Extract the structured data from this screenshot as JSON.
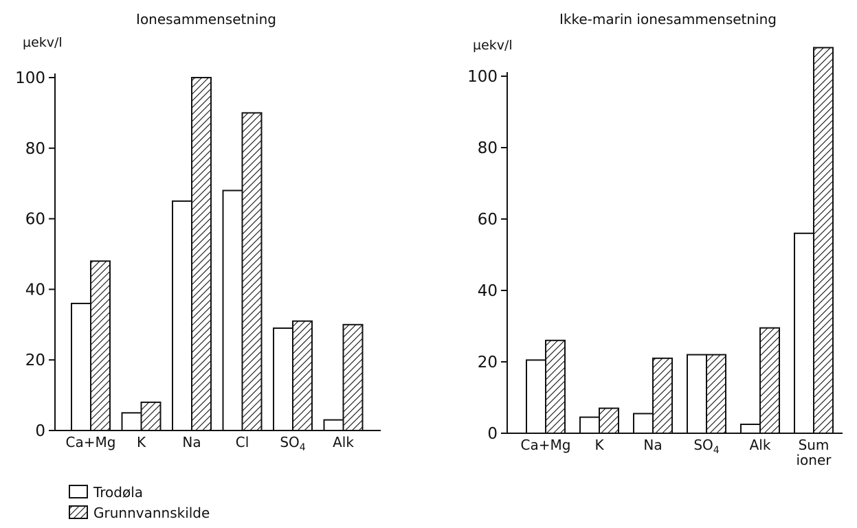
{
  "legend": {
    "items": [
      {
        "label": "Trodøla",
        "pattern": "none"
      },
      {
        "label": "Grunnvannskilde",
        "pattern": "hatched"
      }
    ]
  },
  "chart_data": [
    {
      "type": "bar",
      "title": "Ionesammensetning",
      "ylabel": "µekv/l",
      "ylim": [
        0,
        100
      ],
      "yticks": [
        0,
        20,
        40,
        60,
        80,
        100
      ],
      "categories": [
        "Ca+Mg",
        "K",
        "Na",
        "Cl",
        "SO4",
        "Alk"
      ],
      "series": [
        {
          "name": "Trodøla",
          "values": [
            36,
            5,
            65,
            68,
            29,
            3
          ]
        },
        {
          "name": "Grunnvannskilde",
          "values": [
            48,
            8,
            100,
            90,
            31,
            30
          ]
        }
      ]
    },
    {
      "type": "bar",
      "title": "Ikke-marin ionesammensetning",
      "ylabel": "µekv/l",
      "ylim": [
        0,
        100
      ],
      "yticks": [
        0,
        20,
        40,
        60,
        80,
        100
      ],
      "categories": [
        "Ca+Mg",
        "K",
        "Na",
        "SO4",
        "Alk",
        "Sum ioner"
      ],
      "series": [
        {
          "name": "Trodøla",
          "values": [
            20.5,
            4.5,
            5.5,
            22,
            2.5,
            56
          ]
        },
        {
          "name": "Grunnvannskilde",
          "values": [
            26,
            7,
            21,
            22,
            29.5,
            108
          ]
        }
      ]
    }
  ]
}
